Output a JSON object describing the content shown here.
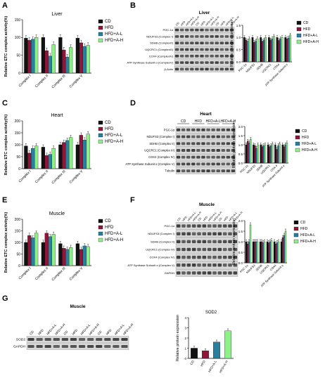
{
  "colors": {
    "cd": "#111111",
    "hfd": "#8e1638",
    "hfd_al": "#2a7f9e",
    "hfd_ah": "#8ff08a"
  },
  "legend": [
    "CD",
    "HFD",
    "HFD+A-L",
    "HFD+A-H"
  ],
  "chart_data": [
    {
      "panel": "A",
      "type": "bar",
      "title": "Liver",
      "ylabel": "Relative ETC complex activity(%)",
      "ylim": [
        0,
        150
      ],
      "yticks": [
        "0",
        "50",
        "100",
        "150"
      ],
      "categories": [
        "Complex I",
        "Complex II",
        "Complex III",
        "Complex V"
      ],
      "series": [
        {
          "name": "CD",
          "values": [
            98,
            100,
            100,
            98
          ]
        },
        {
          "name": "HFD",
          "values": [
            92,
            63,
            65,
            85
          ]
        },
        {
          "name": "HFD+A-L",
          "values": [
            95,
            48,
            45,
            75
          ]
        },
        {
          "name": "HFD+A-H",
          "values": [
            100,
            80,
            72,
            78
          ]
        }
      ]
    },
    {
      "panel": "B",
      "type": "bar",
      "ylabel": "Relative protein expression",
      "ylim": [
        0,
        1.5
      ],
      "yticks": [
        "0.0",
        "0.5",
        "1.0",
        "1.5"
      ],
      "categories": [
        "PGC-1α",
        "NDUFS3",
        "SDHB",
        "UQCRC1",
        "COX4",
        "ATP Synthase Subunit α"
      ],
      "series": [
        {
          "name": "CD",
          "values": [
            1.0,
            1.0,
            1.0,
            1.0,
            1.0,
            1.0
          ]
        },
        {
          "name": "HFD",
          "values": [
            0.9,
            0.8,
            0.85,
            0.9,
            0.88,
            0.95
          ]
        },
        {
          "name": "HFD+A-L",
          "values": [
            0.85,
            0.85,
            0.9,
            0.95,
            0.95,
            0.98
          ]
        },
        {
          "name": "HFD+A-H",
          "values": [
            0.95,
            0.95,
            1.0,
            1.05,
            1.0,
            1.1
          ]
        }
      ]
    },
    {
      "panel": "C",
      "type": "bar",
      "title": "Heart",
      "ylabel": "Relative ETC complex activity(%)",
      "ylim": [
        0,
        200
      ],
      "yticks": [
        "0",
        "50",
        "100",
        "150",
        "200"
      ],
      "categories": [
        "Complex I",
        "Complex II",
        "Complex III",
        "Complex V"
      ],
      "series": [
        {
          "name": "CD",
          "values": [
            95,
            90,
            100,
            100
          ]
        },
        {
          "name": "HFD",
          "values": [
            65,
            55,
            110,
            140
          ]
        },
        {
          "name": "HFD+A-L",
          "values": [
            85,
            60,
            118,
            120
          ]
        },
        {
          "name": "HFD+A-H",
          "values": [
            95,
            85,
            130,
            145
          ]
        }
      ]
    },
    {
      "panel": "D",
      "type": "bar",
      "ylabel": "Relative protein expression",
      "ylim": [
        0,
        2.0
      ],
      "yticks": [
        "0.0",
        "0.5",
        "1.0",
        "1.5",
        "2.0"
      ],
      "categories": [
        "PGC-1α",
        "NDUFS3",
        "SDHB",
        "UQCRC1",
        "COX 4",
        "ATP Synthase Subunit α"
      ],
      "series": [
        {
          "name": "CD",
          "values": [
            1.0,
            1.0,
            1.0,
            1.0,
            1.0,
            1.0
          ]
        },
        {
          "name": "HFD",
          "values": [
            1.2,
            0.95,
            0.9,
            0.9,
            0.75,
            0.9
          ]
        },
        {
          "name": "HFD+A-L",
          "values": [
            1.1,
            0.8,
            0.95,
            0.95,
            0.95,
            1.0
          ]
        },
        {
          "name": "HFD+A-H",
          "values": [
            1.3,
            1.0,
            1.0,
            1.05,
            1.05,
            1.1
          ]
        }
      ]
    },
    {
      "panel": "E",
      "type": "bar",
      "title": "Muscle",
      "ylabel": "Relative ETC complex activity(%)",
      "ylim": [
        0,
        200
      ],
      "yticks": [
        "0",
        "50",
        "100",
        "150",
        "200"
      ],
      "categories": [
        "Complex I",
        "Complex II",
        "Complex III",
        "Complex V"
      ],
      "series": [
        {
          "name": "CD",
          "values": [
            100,
            100,
            95,
            95
          ]
        },
        {
          "name": "HFD",
          "values": [
            130,
            140,
            75,
            70
          ]
        },
        {
          "name": "HFD+A-L",
          "values": [
            120,
            125,
            70,
            85
          ]
        },
        {
          "name": "HFD+A-H",
          "values": [
            140,
            135,
            78,
            82
          ]
        }
      ]
    },
    {
      "panel": "F",
      "type": "bar",
      "ylabel": "Relative protein expression",
      "ylim": [
        0,
        2.0
      ],
      "yticks": [
        "0.0",
        "0.5",
        "1.0",
        "1.5",
        "2.0"
      ],
      "categories": [
        "PGC-1α",
        "NDUFS3",
        "SDHB",
        "UQCRC1",
        "COX4",
        "ATP Synthase Subunit α"
      ],
      "series": [
        {
          "name": "CD",
          "values": [
            1.0,
            1.0,
            1.0,
            1.0,
            1.0,
            1.0
          ]
        },
        {
          "name": "HFD",
          "values": [
            0.9,
            1.0,
            1.0,
            0.95,
            0.9,
            1.2
          ]
        },
        {
          "name": "HFD+A-L",
          "values": [
            1.0,
            1.0,
            0.95,
            1.0,
            0.95,
            1.3
          ]
        },
        {
          "name": "HFD+A-H",
          "values": [
            1.8,
            1.0,
            1.0,
            1.05,
            1.0,
            1.5
          ]
        }
      ]
    },
    {
      "panel": "G",
      "type": "bar",
      "title": "SOD2",
      "ylabel": "Relative protein expression",
      "ylim": [
        0,
        4
      ],
      "yticks": [
        "0",
        "1",
        "2",
        "3",
        "4"
      ],
      "categories": [
        "CD",
        "HFD",
        "HFD+A-L",
        "HFD+A-H"
      ],
      "series": [
        {
          "name": "SOD2",
          "values": [
            1.0,
            0.75,
            1.6,
            2.7
          ]
        }
      ]
    }
  ],
  "blots": [
    {
      "panel": "B",
      "title": "Liver",
      "lanes": [
        "CD",
        "HFD",
        "HFD+A-L",
        "HFD+A-H",
        "CD",
        "HFD",
        "HFD+A-L",
        "HFD+A-H",
        "CD",
        "HFD",
        "HFD+A-L",
        "HFD+A-H"
      ],
      "rows": [
        "PGC-1α",
        "NDUFS3 (Complex I)",
        "SDHB (ComplexII)",
        "UQCRC1 (ComplexIII)",
        "COX4 (ComplexIV)",
        "ATP Synthase Subunit α (ComplexV)",
        "β-Actin"
      ]
    },
    {
      "panel": "D",
      "title": "Heart",
      "groups": [
        "CD",
        "HFD",
        "HFD+A-L",
        "HFD+A-H"
      ],
      "rows": [
        "PGC-1α",
        "NDUFS3 (Complex I)",
        "SDHB (Complex II)",
        "UQCRC1 (Complex III)",
        "COX4 (Complex IV)",
        "ATP Synthase Subunit α (Complex V)",
        "Tubulin"
      ]
    },
    {
      "panel": "F",
      "title": "Muscle",
      "lanes": [
        "CD",
        "HFD",
        "HFD+A-L",
        "HFD+A-H",
        "CD",
        "HFD",
        "HFD+A-L",
        "HFD+A-H",
        "CD",
        "HFD",
        "HFD+A-L",
        "HFD+A-H"
      ],
      "rows": [
        "PGC-1α",
        "NDUFS3 (Complex I)",
        "SDHB (Complex II)",
        "UQCRC1 (Complex III)",
        "COX4 (Complex IV)",
        "ATP Synthase Subunit α (Complex V)",
        "GAPDH"
      ]
    },
    {
      "panel": "G",
      "title": "Muscle",
      "lanes": [
        "CD",
        "HFD",
        "HFD+A-L",
        "HFD+A-H",
        "CD",
        "HFD",
        "HFD+A-L",
        "HFD+A-H",
        "CD",
        "HFD",
        "HFD+A-L",
        "HFD+A-H"
      ],
      "rows": [
        "SOD2",
        "GAPDH"
      ]
    }
  ]
}
